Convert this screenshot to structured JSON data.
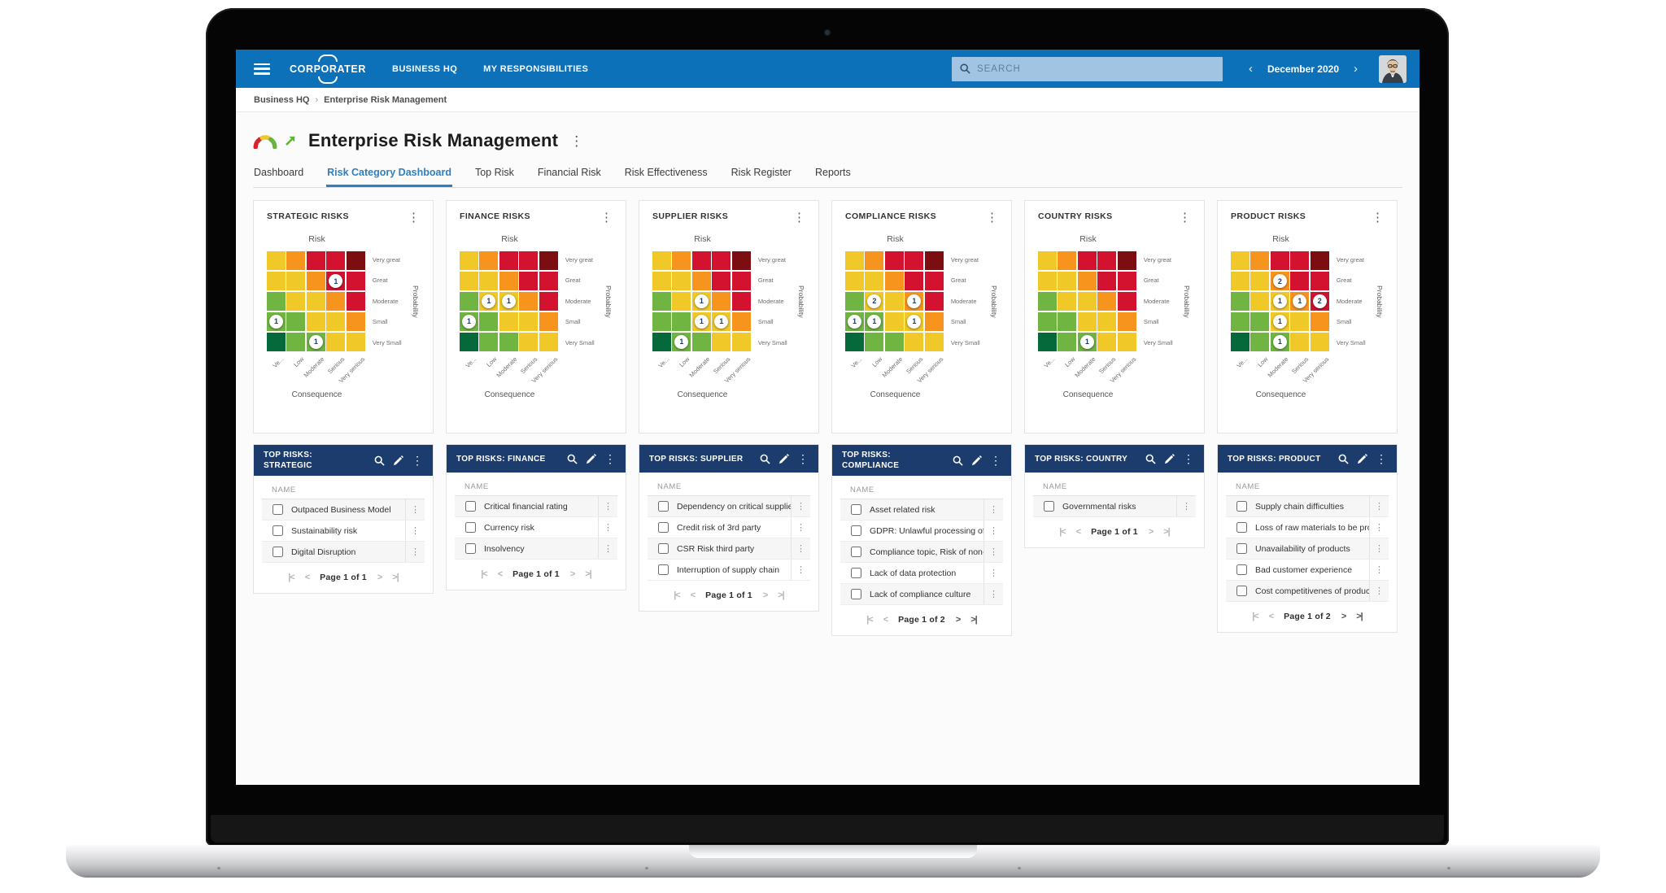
{
  "topbar": {
    "logo": "CORPORATER",
    "nav": [
      {
        "label": "BUSINESS HQ"
      },
      {
        "label": "MY RESPONSIBILITIES"
      }
    ],
    "search_placeholder": "SEARCH",
    "period": "December 2020",
    "prev_label": "‹",
    "next_label": "›"
  },
  "breadcrumb": {
    "items": [
      "Business HQ",
      "Enterprise Risk Management"
    ],
    "separator": "›"
  },
  "page": {
    "title": "Enterprise Risk Management",
    "kebab": "⋮"
  },
  "tabs": {
    "items": [
      "Dashboard",
      "Risk Category Dashboard",
      "Top Risk",
      "Financial Risk",
      "Risk Effectiveness",
      "Risk Register",
      "Reports"
    ],
    "active_index": 1
  },
  "chart_data": {
    "type": "heatmap",
    "shared": {
      "title": "Risk",
      "xlabel": "Consequence",
      "ylabel": "Probability",
      "x_ticks": [
        "Ve...",
        "Low",
        "Moderate",
        "Serious",
        "Very serious"
      ],
      "y_ticks_top_to_bottom": [
        "Very great",
        "Great",
        "Moderate",
        "Small",
        "Very Small"
      ],
      "palette": {
        "Y": "#f0c929",
        "O": "#f7941e",
        "R": "#d2122e",
        "DR": "#7c0d10",
        "G": "#70b542",
        "DG": "#05693b"
      },
      "cell_colors_rows_top_to_bottom": [
        [
          "Y",
          "O",
          "R",
          "R",
          "DR"
        ],
        [
          "Y",
          "Y",
          "O",
          "R",
          "R"
        ],
        [
          "G",
          "Y",
          "Y",
          "O",
          "R"
        ],
        [
          "G",
          "G",
          "Y",
          "Y",
          "O"
        ],
        [
          "DG",
          "G",
          "G",
          "Y",
          "Y"
        ]
      ]
    },
    "charts": [
      {
        "card_title": "STRATEGIC RISKS",
        "points": [
          {
            "row": 2,
            "col": 4,
            "count": 1
          },
          {
            "row": 4,
            "col": 1,
            "count": 1
          },
          {
            "row": 5,
            "col": 3,
            "count": 1
          }
        ]
      },
      {
        "card_title": "FINANCE RISKS",
        "points": [
          {
            "row": 3,
            "col": 2,
            "count": 1
          },
          {
            "row": 3,
            "col": 3,
            "count": 1
          },
          {
            "row": 4,
            "col": 1,
            "count": 1
          }
        ]
      },
      {
        "card_title": "SUPPLIER RISKS",
        "points": [
          {
            "row": 3,
            "col": 3,
            "count": 1
          },
          {
            "row": 4,
            "col": 3,
            "count": 1
          },
          {
            "row": 4,
            "col": 4,
            "count": 1
          },
          {
            "row": 5,
            "col": 2,
            "count": 1
          }
        ]
      },
      {
        "card_title": "COMPLIANCE RISKS",
        "points": [
          {
            "row": 3,
            "col": 2,
            "count": 2
          },
          {
            "row": 3,
            "col": 4,
            "count": 1
          },
          {
            "row": 4,
            "col": 1,
            "count": 1
          },
          {
            "row": 4,
            "col": 2,
            "count": 1
          },
          {
            "row": 4,
            "col": 4,
            "count": 1
          }
        ]
      },
      {
        "card_title": "COUNTRY RISKS",
        "points": [
          {
            "row": 5,
            "col": 3,
            "count": 1
          }
        ]
      },
      {
        "card_title": "PRODUCT RISKS",
        "points": [
          {
            "row": 2,
            "col": 3,
            "count": 2
          },
          {
            "row": 3,
            "col": 3,
            "count": 1
          },
          {
            "row": 3,
            "col": 4,
            "count": 1
          },
          {
            "row": 3,
            "col": 5,
            "count": 2
          },
          {
            "row": 4,
            "col": 3,
            "count": 1
          },
          {
            "row": 5,
            "col": 3,
            "count": 1
          }
        ]
      }
    ]
  },
  "list_cards": [
    {
      "title": "TOP RISKS: STRATEGIC",
      "name_column": "NAME",
      "rows": [
        "Outpaced Business Model",
        "Sustainability risk",
        "Digital Disruption"
      ],
      "pagination": "Page 1 of 1"
    },
    {
      "title": "TOP RISKS: FINANCE",
      "name_column": "NAME",
      "rows": [
        "Critical financial rating",
        "Currency risk",
        "Insolvency"
      ],
      "pagination": "Page 1 of 1"
    },
    {
      "title": "TOP RISKS: SUPPLIER",
      "name_column": "NAME",
      "rows": [
        "Dependency on critical supplie",
        "Credit risk of 3rd party",
        "CSR Risk third party",
        "Interruption of supply chain"
      ],
      "pagination": "Page 1 of 1"
    },
    {
      "title": "TOP RISKS: COMPLIANCE",
      "name_column": "NAME",
      "rows": [
        "Asset related risk",
        "GDPR: Unlawful processing of",
        "Compliance topic, Risk of non-",
        "Lack of data protection",
        "Lack of compliance culture"
      ],
      "pagination": "Page 1 of 2"
    },
    {
      "title": "TOP RISKS: COUNTRY",
      "name_column": "NAME",
      "rows": [
        "Governmental risks"
      ],
      "pagination": "Page 1 of 1"
    },
    {
      "title": "TOP RISKS: PRODUCT",
      "name_column": "NAME",
      "rows": [
        "Supply chain difficulties",
        "Loss of raw materials to be pro",
        "Unavailability of products",
        "Bad customer experience",
        "Cost competitivenes of produc"
      ],
      "pagination": "Page 1 of 2"
    }
  ],
  "pager_glyphs": {
    "first": "|<",
    "prev": "<",
    "next": ">",
    "last": ">|"
  }
}
